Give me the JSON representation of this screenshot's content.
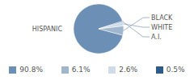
{
  "chart_data": {
    "type": "pie",
    "categories": [
      "HISPANIC",
      "BLACK",
      "WHITE",
      "A.I."
    ],
    "values": [
      90.8,
      6.1,
      2.6,
      0.5
    ],
    "value_labels": [
      "90.8%",
      "6.1%",
      "2.6%",
      "0.5%"
    ],
    "colors": [
      "#6b8fb5",
      "#9fb6cd",
      "#cfdbe7",
      "#2f5b88"
    ]
  }
}
